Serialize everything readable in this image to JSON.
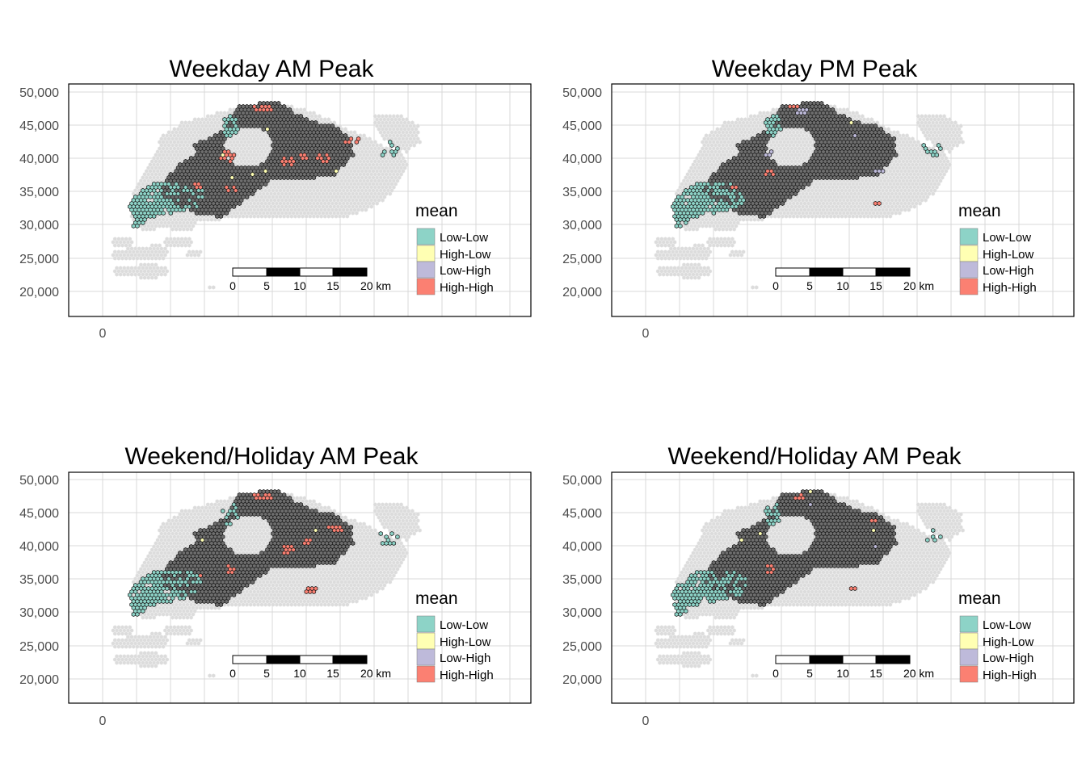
{
  "figure": {
    "panels": [
      {
        "id": "p1",
        "title": "Weekday AM Peak",
        "variant": 0
      },
      {
        "id": "p2",
        "title": "Weekday PM Peak",
        "variant": 1
      },
      {
        "id": "p3",
        "title": "Weekend/Holiday AM Peak",
        "variant": 2
      },
      {
        "id": "p4",
        "title": "Weekend/Holiday AM Peak",
        "variant": 3
      }
    ],
    "y_ticks": [
      "50,000",
      "45,000",
      "40,000",
      "35,000",
      "30,000",
      "25,000",
      "20,000"
    ],
    "x_ticks": [
      "0"
    ],
    "legend": {
      "title": "mean",
      "items": [
        {
          "label": "Low-Low",
          "color": "#8dd3c7"
        },
        {
          "label": "High-Low",
          "color": "#ffffb3"
        },
        {
          "label": "Low-High",
          "color": "#bebada"
        },
        {
          "label": "High-High",
          "color": "#fb8072"
        }
      ]
    },
    "scalebar": {
      "labels": [
        "0",
        "5",
        "10",
        "15",
        "20 km"
      ]
    },
    "colors": {
      "background_hex": "#dcdcdc",
      "insignificant": "#6e6e6e",
      "hex_outline": "#1a1a1a",
      "grid": "#d9d9d9",
      "panel_border": "#000000"
    }
  }
}
